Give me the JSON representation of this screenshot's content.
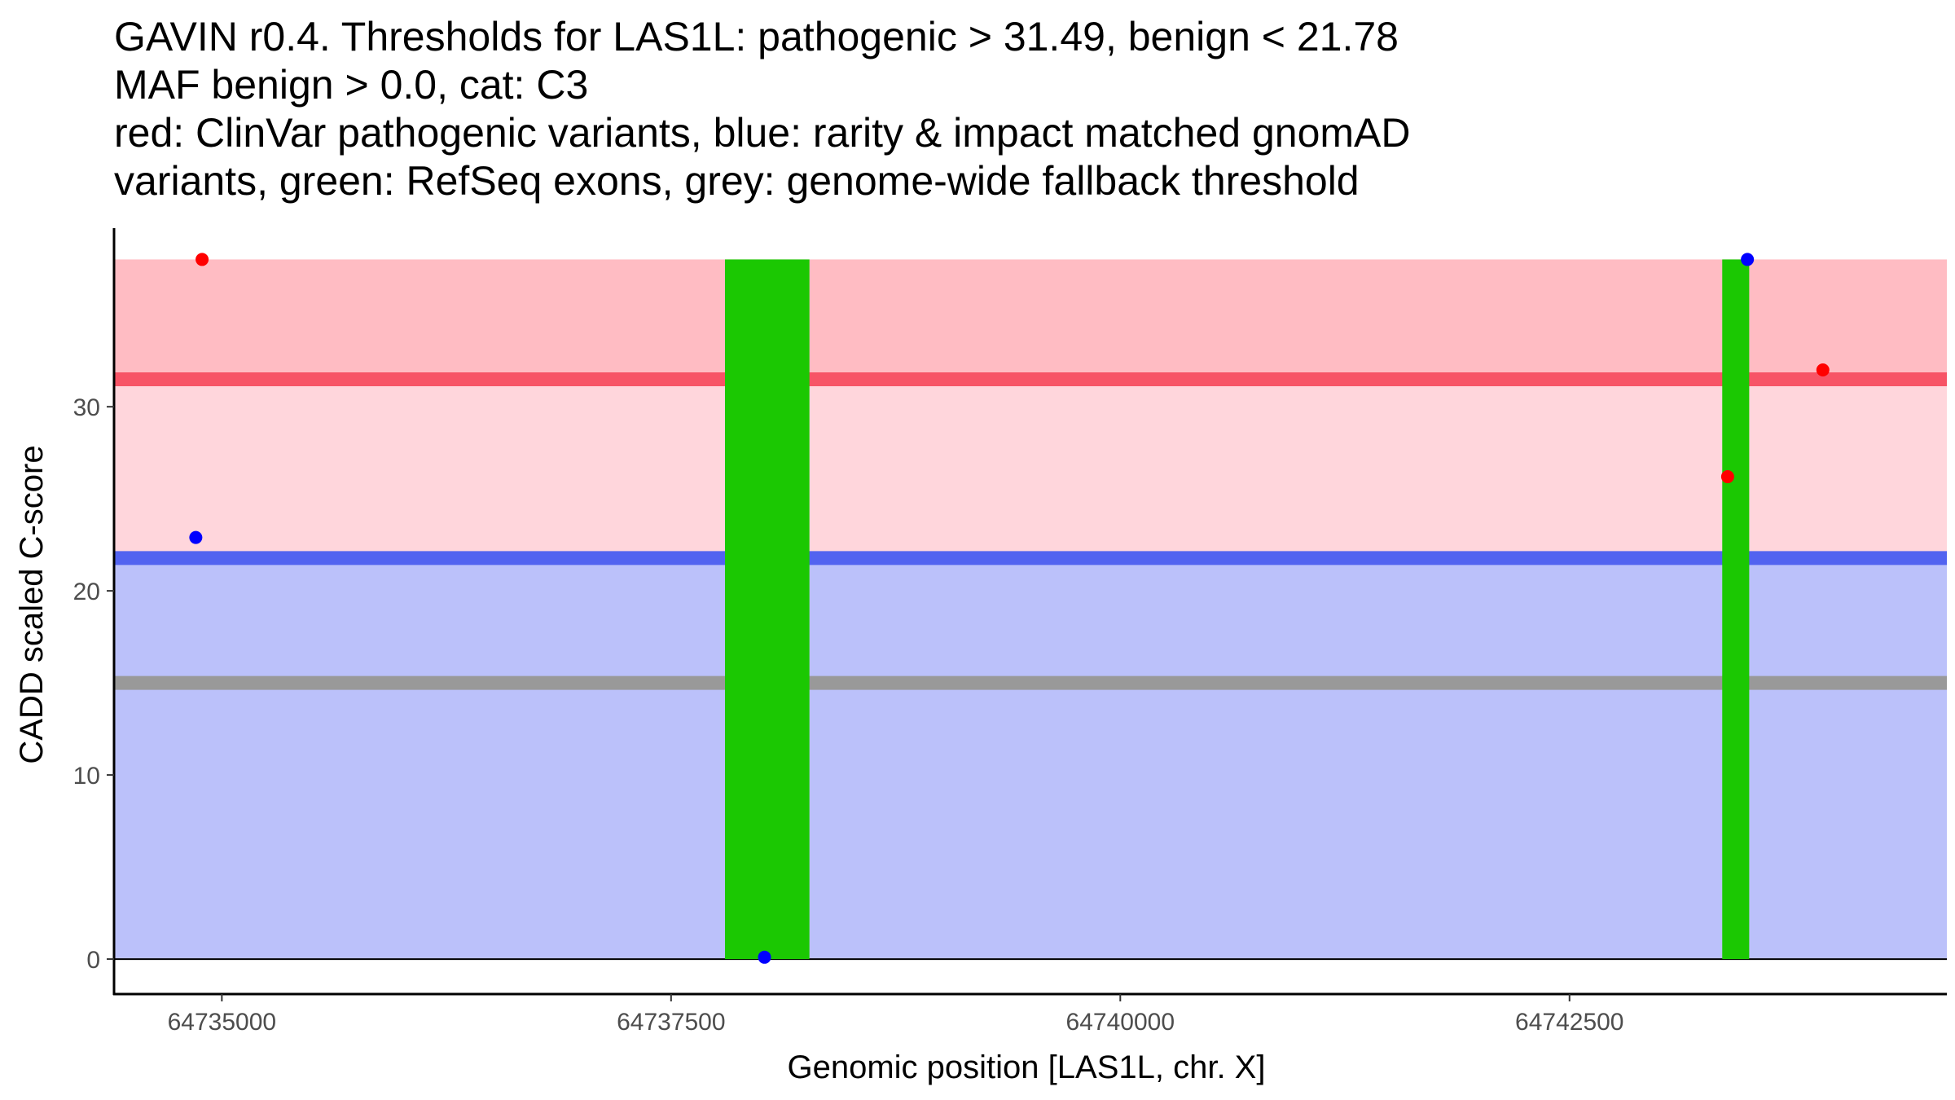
{
  "chart_data": {
    "type": "scatter",
    "title_lines": [
      "GAVIN r0.4. Thresholds for LAS1L: pathogenic > 31.49, benign < 21.78",
      "MAF benign > 0.0, cat: C3",
      "red: ClinVar pathogenic variants, blue: rarity & impact matched gnomAD",
      "variants, green: RefSeq exons, grey: genome-wide fallback threshold"
    ],
    "xlabel": "Genomic position [LAS1L, chr. X]",
    "ylabel": "CADD scaled C-score",
    "xlim": [
      64734400,
      64744600
    ],
    "ylim": [
      -1.9,
      39.7
    ],
    "x_ticks": [
      {
        "value": 64735000,
        "label": "64735000"
      },
      {
        "value": 64737500,
        "label": "64737500"
      },
      {
        "value": 64740000,
        "label": "64740000"
      },
      {
        "value": 64742500,
        "label": "64742500"
      }
    ],
    "y_ticks": [
      {
        "value": 0,
        "label": "0"
      },
      {
        "value": 10,
        "label": "10"
      },
      {
        "value": 20,
        "label": "20"
      },
      {
        "value": 30,
        "label": "30"
      }
    ],
    "regions": [
      {
        "name": "benign-region",
        "y0": 0,
        "y1": 21.78,
        "color": "#bbc1fa"
      },
      {
        "name": "intermediate-region",
        "y0": 21.78,
        "y1": 31.49,
        "color": "#ffd6dc"
      },
      {
        "name": "pathogenic-region",
        "y0": 31.49,
        "y1": 38,
        "color": "#ffbcc3"
      }
    ],
    "thresholds": [
      {
        "name": "benign-threshold",
        "value": 21.78,
        "color": "#5263f0"
      },
      {
        "name": "pathogenic-threshold",
        "value": 31.49,
        "color": "#f75466"
      },
      {
        "name": "fallback-threshold",
        "value": 15,
        "color": "#999999"
      }
    ],
    "exons": [
      {
        "start": 64737800,
        "end": 64738270,
        "color": "#1bc802"
      },
      {
        "start": 64743350,
        "end": 64743500,
        "color": "#1bc802"
      }
    ],
    "series": [
      {
        "name": "ClinVar pathogenic variants",
        "color": "#ff0000",
        "points": [
          {
            "x": 64734890,
            "y": 38
          },
          {
            "x": 64743380,
            "y": 26.2
          },
          {
            "x": 64743910,
            "y": 32
          }
        ]
      },
      {
        "name": "rarity & impact matched gnomAD variants",
        "color": "#0000ff",
        "points": [
          {
            "x": 64734855,
            "y": 22.9
          },
          {
            "x": 64738020,
            "y": 0.1
          },
          {
            "x": 64743490,
            "y": 38
          }
        ]
      }
    ]
  }
}
